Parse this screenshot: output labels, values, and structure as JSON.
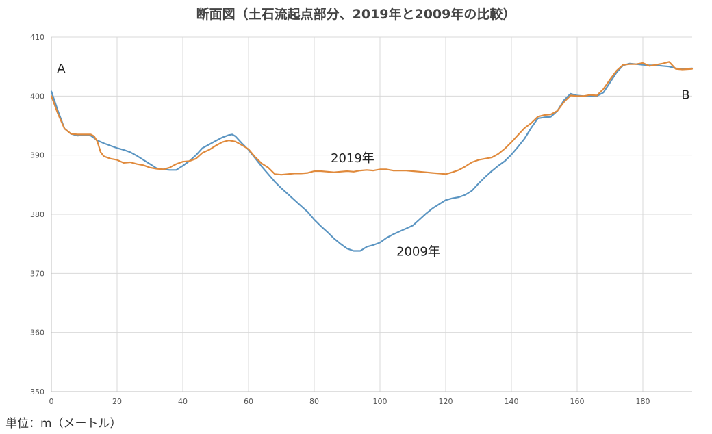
{
  "chart_data": {
    "type": "line",
    "title": "断面図（土石流起点部分、2019年と2009年の比較）",
    "unit_label": "単位：m（メートル）",
    "xlim": [
      0,
      195
    ],
    "ylim": [
      350,
      410
    ],
    "x_ticks": [
      0,
      20,
      40,
      60,
      80,
      100,
      120,
      140,
      160,
      180
    ],
    "y_ticks": [
      350,
      360,
      370,
      380,
      390,
      400,
      410
    ],
    "grid": true,
    "point_labels": [
      {
        "text": "A",
        "x": 3,
        "y": 404
      },
      {
        "text": "B",
        "x": 193,
        "y": 399.5
      }
    ],
    "series": [
      {
        "name": "2009年",
        "color": "#5b95c2",
        "label_at": {
          "x": 105,
          "y": 373
        },
        "points": [
          [
            0,
            400.8
          ],
          [
            2,
            397.5
          ],
          [
            4,
            394.5
          ],
          [
            6,
            393.6
          ],
          [
            8,
            393.3
          ],
          [
            10,
            393.4
          ],
          [
            12,
            393.3
          ],
          [
            14,
            392.5
          ],
          [
            16,
            392.0
          ],
          [
            18,
            391.6
          ],
          [
            20,
            391.2
          ],
          [
            22,
            390.9
          ],
          [
            24,
            390.5
          ],
          [
            26,
            389.9
          ],
          [
            28,
            389.2
          ],
          [
            30,
            388.5
          ],
          [
            32,
            387.8
          ],
          [
            34,
            387.6
          ],
          [
            36,
            387.5
          ],
          [
            38,
            387.5
          ],
          [
            40,
            388.2
          ],
          [
            42,
            389.0
          ],
          [
            44,
            390.0
          ],
          [
            46,
            391.2
          ],
          [
            48,
            391.8
          ],
          [
            50,
            392.4
          ],
          [
            52,
            393.0
          ],
          [
            54,
            393.4
          ],
          [
            55,
            393.5
          ],
          [
            56,
            393.2
          ],
          [
            58,
            392.0
          ],
          [
            60,
            390.9
          ],
          [
            62,
            389.5
          ],
          [
            64,
            388.1
          ],
          [
            66,
            386.8
          ],
          [
            68,
            385.5
          ],
          [
            70,
            384.4
          ],
          [
            72,
            383.4
          ],
          [
            74,
            382.4
          ],
          [
            76,
            381.4
          ],
          [
            78,
            380.4
          ],
          [
            80,
            379.1
          ],
          [
            82,
            378.0
          ],
          [
            84,
            377.0
          ],
          [
            86,
            375.9
          ],
          [
            88,
            375.0
          ],
          [
            90,
            374.2
          ],
          [
            92,
            373.8
          ],
          [
            94,
            373.8
          ],
          [
            96,
            374.5
          ],
          [
            98,
            374.8
          ],
          [
            100,
            375.2
          ],
          [
            102,
            376.0
          ],
          [
            104,
            376.6
          ],
          [
            106,
            377.1
          ],
          [
            108,
            377.6
          ],
          [
            110,
            378.1
          ],
          [
            112,
            379.1
          ],
          [
            114,
            380.1
          ],
          [
            116,
            381.0
          ],
          [
            118,
            381.7
          ],
          [
            120,
            382.4
          ],
          [
            122,
            382.7
          ],
          [
            124,
            382.9
          ],
          [
            126,
            383.3
          ],
          [
            128,
            384.0
          ],
          [
            130,
            385.2
          ],
          [
            132,
            386.3
          ],
          [
            134,
            387.3
          ],
          [
            136,
            388.2
          ],
          [
            138,
            389.0
          ],
          [
            140,
            390.1
          ],
          [
            142,
            391.4
          ],
          [
            144,
            392.8
          ],
          [
            146,
            394.6
          ],
          [
            148,
            396.2
          ],
          [
            150,
            396.4
          ],
          [
            152,
            396.5
          ],
          [
            154,
            397.5
          ],
          [
            156,
            399.3
          ],
          [
            158,
            400.4
          ],
          [
            160,
            400.1
          ],
          [
            162,
            400.0
          ],
          [
            164,
            400.0
          ],
          [
            166,
            400.0
          ],
          [
            168,
            400.6
          ],
          [
            170,
            402.3
          ],
          [
            172,
            404.0
          ],
          [
            174,
            405.2
          ],
          [
            176,
            405.5
          ],
          [
            178,
            405.4
          ],
          [
            180,
            405.3
          ],
          [
            182,
            405.2
          ],
          [
            184,
            405.2
          ],
          [
            186,
            405.1
          ],
          [
            188,
            405.0
          ],
          [
            190,
            404.7
          ],
          [
            192,
            404.6
          ],
          [
            195,
            404.7
          ]
        ]
      },
      {
        "name": "2019年",
        "color": "#e08a3c",
        "label_at": {
          "x": 85,
          "y": 388.8
        },
        "points": [
          [
            0,
            400.0
          ],
          [
            2,
            397.0
          ],
          [
            4,
            394.5
          ],
          [
            6,
            393.6
          ],
          [
            8,
            393.5
          ],
          [
            10,
            393.5
          ],
          [
            12,
            393.5
          ],
          [
            13,
            393.2
          ],
          [
            14,
            392.3
          ],
          [
            15,
            390.5
          ],
          [
            16,
            389.8
          ],
          [
            18,
            389.4
          ],
          [
            20,
            389.2
          ],
          [
            22,
            388.7
          ],
          [
            24,
            388.8
          ],
          [
            26,
            388.5
          ],
          [
            28,
            388.3
          ],
          [
            30,
            387.9
          ],
          [
            32,
            387.7
          ],
          [
            34,
            387.6
          ],
          [
            36,
            387.9
          ],
          [
            38,
            388.5
          ],
          [
            40,
            388.9
          ],
          [
            42,
            389.0
          ],
          [
            44,
            389.4
          ],
          [
            46,
            390.4
          ],
          [
            48,
            390.9
          ],
          [
            50,
            391.6
          ],
          [
            52,
            392.2
          ],
          [
            54,
            392.5
          ],
          [
            56,
            392.3
          ],
          [
            58,
            391.7
          ],
          [
            60,
            391.0
          ],
          [
            62,
            389.7
          ],
          [
            64,
            388.6
          ],
          [
            66,
            387.9
          ],
          [
            68,
            386.8
          ],
          [
            70,
            386.7
          ],
          [
            72,
            386.8
          ],
          [
            74,
            386.9
          ],
          [
            76,
            386.9
          ],
          [
            78,
            387.0
          ],
          [
            80,
            387.3
          ],
          [
            82,
            387.3
          ],
          [
            84,
            387.2
          ],
          [
            86,
            387.1
          ],
          [
            88,
            387.2
          ],
          [
            90,
            387.3
          ],
          [
            92,
            387.2
          ],
          [
            94,
            387.4
          ],
          [
            96,
            387.5
          ],
          [
            98,
            387.4
          ],
          [
            100,
            387.6
          ],
          [
            102,
            387.6
          ],
          [
            104,
            387.4
          ],
          [
            106,
            387.4
          ],
          [
            108,
            387.4
          ],
          [
            110,
            387.3
          ],
          [
            112,
            387.2
          ],
          [
            114,
            387.1
          ],
          [
            116,
            387.0
          ],
          [
            118,
            386.9
          ],
          [
            120,
            386.8
          ],
          [
            122,
            387.1
          ],
          [
            124,
            387.5
          ],
          [
            126,
            388.1
          ],
          [
            128,
            388.8
          ],
          [
            130,
            389.2
          ],
          [
            132,
            389.4
          ],
          [
            134,
            389.6
          ],
          [
            136,
            390.2
          ],
          [
            138,
            391.1
          ],
          [
            140,
            392.2
          ],
          [
            142,
            393.4
          ],
          [
            144,
            394.6
          ],
          [
            146,
            395.4
          ],
          [
            148,
            396.5
          ],
          [
            150,
            396.8
          ],
          [
            152,
            396.9
          ],
          [
            154,
            397.5
          ],
          [
            156,
            399.0
          ],
          [
            158,
            400.1
          ],
          [
            160,
            400.0
          ],
          [
            162,
            400.0
          ],
          [
            164,
            400.2
          ],
          [
            166,
            400.1
          ],
          [
            168,
            401.2
          ],
          [
            170,
            402.8
          ],
          [
            172,
            404.3
          ],
          [
            174,
            405.3
          ],
          [
            176,
            405.4
          ],
          [
            178,
            405.4
          ],
          [
            180,
            405.6
          ],
          [
            182,
            405.1
          ],
          [
            184,
            405.3
          ],
          [
            186,
            405.5
          ],
          [
            188,
            405.8
          ],
          [
            190,
            404.6
          ],
          [
            192,
            404.5
          ],
          [
            195,
            404.6
          ]
        ]
      }
    ]
  }
}
